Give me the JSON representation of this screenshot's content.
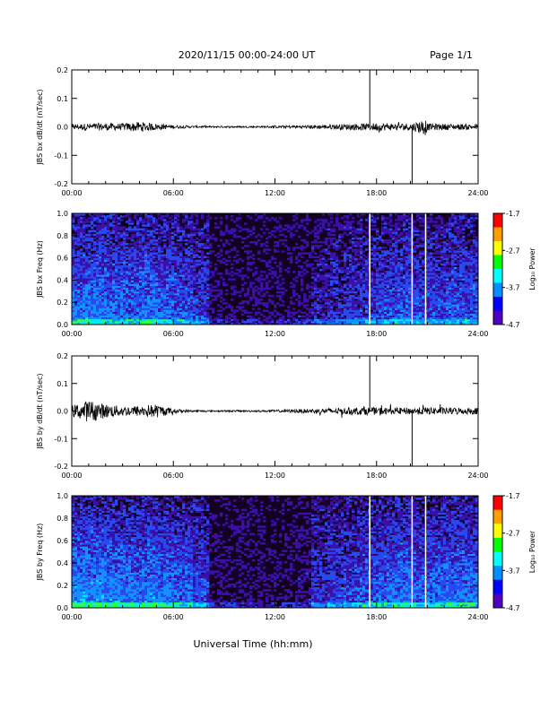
{
  "header": {
    "title": "2020/11/15  00:00-24:00 UT",
    "page": "Page 1/1"
  },
  "xlabel": "Universal Time (hh:mm)",
  "colorbar": {
    "label": "Log₁₀ Power",
    "ticks": [
      "-1.7",
      "-2.7",
      "-3.7",
      "-4.7"
    ],
    "colors": [
      "#ff0000",
      "#ffa000",
      "#ffff00",
      "#00ff00",
      "#00ffff",
      "#0090ff",
      "#0000ff",
      "#5000c0",
      "#000000"
    ]
  },
  "chart_data": [
    {
      "type": "line",
      "ylabel": "JBS bx dB/dt (nT/sec)",
      "xlim": [
        0,
        24
      ],
      "ylim": [
        -0.2,
        0.2
      ],
      "x_ticks": [
        "00:00",
        "06:00",
        "12:00",
        "18:00",
        "24:00"
      ],
      "y_ticks": [
        "0.2",
        "0.1",
        "0.0",
        "-0.1",
        "-0.2"
      ],
      "series": [
        {
          "x": [
            0,
            1,
            2,
            3,
            4,
            5,
            6,
            7,
            8,
            9,
            10,
            11,
            12,
            13,
            14,
            15,
            16,
            17,
            17.6,
            18,
            19,
            20.1,
            20.9,
            21,
            22,
            23,
            24
          ],
          "y_amplitude": [
            0.01,
            0.012,
            0.013,
            0.012,
            0.018,
            0.012,
            0.006,
            0.004,
            0.003,
            0.003,
            0.003,
            0.003,
            0.004,
            0.005,
            0.006,
            0.008,
            0.01,
            0.012,
            0.012,
            0.014,
            0.012,
            0.013,
            0.03,
            0.012,
            0.011,
            0.01,
            0.01
          ]
        }
      ],
      "spikes_x": [
        17.6,
        20.1
      ]
    },
    {
      "type": "heatmap",
      "ylabel": "JBS bx Freq (Hz)",
      "xlim": [
        0,
        24
      ],
      "ylim": [
        0.0,
        1.0
      ],
      "x_ticks": [
        "00:00",
        "06:00",
        "12:00",
        "18:00",
        "24:00"
      ],
      "y_ticks": [
        "1.0",
        "0.8",
        "0.6",
        "0.4",
        "0.2",
        "0.0"
      ],
      "zlim": [
        -4.7,
        -1.7
      ],
      "activity_by_hour": [
        0.55,
        0.55,
        0.5,
        0.5,
        0.55,
        0.5,
        0.45,
        0.35,
        0.05,
        0.05,
        0.05,
        0.05,
        0.05,
        0.1,
        0.2,
        0.25,
        0.3,
        0.35,
        0.4,
        0.45,
        0.4,
        0.4,
        0.45,
        0.45
      ],
      "gaps_x": [
        17.6,
        20.1,
        20.9
      ]
    },
    {
      "type": "line",
      "ylabel": "JBS by dB/dt (nT/sec)",
      "xlim": [
        0,
        24
      ],
      "ylim": [
        -0.2,
        0.2
      ],
      "x_ticks": [
        "00:00",
        "06:00",
        "12:00",
        "18:00",
        "24:00"
      ],
      "y_ticks": [
        "0.2",
        "0.1",
        "0.0",
        "-0.1",
        "-0.2"
      ],
      "series": [
        {
          "x": [
            0,
            1,
            2,
            3,
            4,
            5,
            6,
            7,
            8,
            9,
            10,
            11,
            12,
            13,
            14,
            15,
            16,
            17,
            17.6,
            18,
            19,
            20.1,
            21,
            22,
            23,
            24
          ],
          "y_amplitude": [
            0.02,
            0.04,
            0.025,
            0.018,
            0.02,
            0.025,
            0.008,
            0.004,
            0.003,
            0.003,
            0.003,
            0.003,
            0.004,
            0.006,
            0.008,
            0.01,
            0.012,
            0.014,
            0.014,
            0.013,
            0.012,
            0.013,
            0.014,
            0.013,
            0.012,
            0.012
          ]
        }
      ],
      "spikes_x": [
        17.6,
        20.1
      ]
    },
    {
      "type": "heatmap",
      "ylabel": "JBS by Freq (Hz)",
      "xlim": [
        0,
        24
      ],
      "ylim": [
        0.0,
        1.0
      ],
      "x_ticks": [
        "00:00",
        "06:00",
        "12:00",
        "18:00",
        "24:00"
      ],
      "y_ticks": [
        "1.0",
        "0.8",
        "0.6",
        "0.4",
        "0.2",
        "0.0"
      ],
      "zlim": [
        -4.7,
        -1.7
      ],
      "activity_by_hour": [
        0.65,
        0.65,
        0.6,
        0.55,
        0.6,
        0.55,
        0.5,
        0.4,
        0.05,
        0.05,
        0.05,
        0.05,
        0.05,
        0.1,
        0.3,
        0.35,
        0.4,
        0.45,
        0.5,
        0.55,
        0.5,
        0.5,
        0.55,
        0.55
      ],
      "gaps_x": [
        17.6,
        20.1,
        20.9
      ]
    }
  ]
}
